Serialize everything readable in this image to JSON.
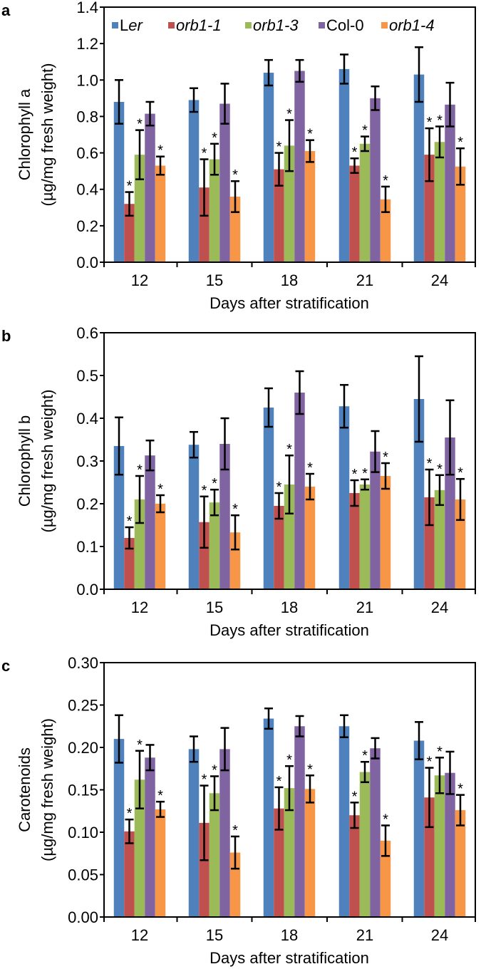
{
  "series_colors": {
    "Ler": "#4f81bd",
    "orb1-1": "#c0504d",
    "orb1-3": "#9bbb59",
    "Col-0": "#8064a2",
    "orb1-4": "#f79646"
  },
  "legend": {
    "placement": "top",
    "entries": [
      {
        "name": "Ler",
        "italic_part": "er"
      },
      {
        "name": "orb1-1",
        "italic_part": "orb1-1"
      },
      {
        "name": "orb1-3",
        "italic_part": "orb1-3"
      },
      {
        "name": "Col-0",
        "italic_part": ""
      },
      {
        "name": "orb1-4",
        "italic_part": "orb1-4"
      }
    ]
  },
  "chart_data": [
    {
      "panel_label": "a",
      "type": "bar",
      "ylabel": [
        "Chlorophyll a",
        "(µg/mg fresh weight)"
      ],
      "xlabel": "Days after stratification",
      "categories": [
        "12",
        "15",
        "18",
        "21",
        "24"
      ],
      "ylim": [
        0,
        1.4
      ],
      "yticks": [
        "0.0",
        "0.2",
        "0.4",
        "0.6",
        "0.8",
        "1.0",
        "1.2",
        "1.4"
      ],
      "grid": false,
      "legend": true,
      "series": [
        {
          "name": "Ler",
          "values": [
            0.88,
            0.89,
            1.04,
            1.06,
            1.03
          ],
          "errors": [
            0.12,
            0.065,
            0.07,
            0.08,
            0.15
          ],
          "significant": [
            false,
            false,
            false,
            false,
            false
          ]
        },
        {
          "name": "orb1-1",
          "values": [
            0.32,
            0.41,
            0.51,
            0.53,
            0.59
          ],
          "errors": [
            0.065,
            0.155,
            0.09,
            0.04,
            0.145
          ],
          "significant": [
            true,
            true,
            true,
            true,
            true
          ]
        },
        {
          "name": "orb1-3",
          "values": [
            0.59,
            0.565,
            0.64,
            0.65,
            0.66
          ],
          "errors": [
            0.135,
            0.085,
            0.14,
            0.04,
            0.085
          ],
          "significant": [
            true,
            true,
            true,
            true,
            true
          ]
        },
        {
          "name": "Col-0",
          "values": [
            0.815,
            0.87,
            1.05,
            0.9,
            0.865
          ],
          "errors": [
            0.065,
            0.11,
            0.06,
            0.065,
            0.12
          ],
          "significant": [
            false,
            false,
            false,
            false,
            false
          ]
        },
        {
          "name": "orb1-4",
          "values": [
            0.53,
            0.36,
            0.61,
            0.345,
            0.525
          ],
          "errors": [
            0.05,
            0.085,
            0.06,
            0.07,
            0.1
          ],
          "significant": [
            true,
            true,
            true,
            true,
            true
          ]
        }
      ]
    },
    {
      "panel_label": "b",
      "type": "bar",
      "ylabel": [
        "Chlorophyll b",
        "(µg/mg fresh weight)"
      ],
      "xlabel": "Days after stratification",
      "categories": [
        "12",
        "15",
        "18",
        "21",
        "24"
      ],
      "ylim": [
        0,
        0.6
      ],
      "yticks": [
        "0.0",
        "0.1",
        "0.2",
        "0.3",
        "0.4",
        "0.5",
        "0.6"
      ],
      "grid": false,
      "legend": false,
      "series": [
        {
          "name": "Ler",
          "values": [
            0.335,
            0.338,
            0.425,
            0.428,
            0.445
          ],
          "errors": [
            0.067,
            0.03,
            0.045,
            0.05,
            0.1
          ],
          "significant": [
            false,
            false,
            false,
            false,
            false
          ]
        },
        {
          "name": "orb1-1",
          "values": [
            0.12,
            0.157,
            0.195,
            0.225,
            0.215
          ],
          "errors": [
            0.025,
            0.06,
            0.03,
            0.03,
            0.065
          ],
          "significant": [
            true,
            true,
            true,
            true,
            true
          ]
        },
        {
          "name": "orb1-3",
          "values": [
            0.21,
            0.203,
            0.245,
            0.245,
            0.232
          ],
          "errors": [
            0.055,
            0.03,
            0.068,
            0.012,
            0.035
          ],
          "significant": [
            true,
            true,
            true,
            true,
            true
          ]
        },
        {
          "name": "Col-0",
          "values": [
            0.313,
            0.34,
            0.46,
            0.322,
            0.355
          ],
          "errors": [
            0.035,
            0.06,
            0.05,
            0.048,
            0.087
          ],
          "significant": [
            false,
            false,
            false,
            false,
            false
          ]
        },
        {
          "name": "orb1-4",
          "values": [
            0.2,
            0.133,
            0.24,
            0.265,
            0.21
          ],
          "errors": [
            0.02,
            0.04,
            0.03,
            0.03,
            0.048
          ],
          "significant": [
            true,
            true,
            true,
            true,
            true
          ]
        }
      ]
    },
    {
      "panel_label": "c",
      "type": "bar",
      "ylabel": [
        "Carotenoids",
        "(µg/mg fresh weight)"
      ],
      "xlabel": "Days after stratification",
      "categories": [
        "12",
        "15",
        "18",
        "21",
        "24"
      ],
      "ylim": [
        0,
        0.3
      ],
      "yticks": [
        "0.00",
        "0.05",
        "0.10",
        "0.15",
        "0.20",
        "0.25",
        "0.30"
      ],
      "grid": false,
      "legend": false,
      "series": [
        {
          "name": "Ler",
          "values": [
            0.21,
            0.198,
            0.234,
            0.225,
            0.208
          ],
          "errors": [
            0.028,
            0.015,
            0.012,
            0.013,
            0.022
          ],
          "significant": [
            false,
            false,
            false,
            false,
            false
          ]
        },
        {
          "name": "orb1-1",
          "values": [
            0.101,
            0.111,
            0.128,
            0.12,
            0.141
          ],
          "errors": [
            0.014,
            0.044,
            0.025,
            0.015,
            0.035
          ],
          "significant": [
            true,
            true,
            true,
            true,
            true
          ]
        },
        {
          "name": "orb1-3",
          "values": [
            0.162,
            0.146,
            0.152,
            0.171,
            0.167
          ],
          "errors": [
            0.034,
            0.02,
            0.026,
            0.012,
            0.021
          ],
          "significant": [
            true,
            true,
            true,
            true,
            true
          ]
        },
        {
          "name": "Col-0",
          "values": [
            0.188,
            0.198,
            0.225,
            0.199,
            0.17
          ],
          "errors": [
            0.015,
            0.025,
            0.012,
            0.012,
            0.025
          ],
          "significant": [
            false,
            false,
            false,
            false,
            false
          ]
        },
        {
          "name": "orb1-4",
          "values": [
            0.127,
            0.076,
            0.151,
            0.09,
            0.126
          ],
          "errors": [
            0.009,
            0.019,
            0.016,
            0.018,
            0.018
          ],
          "significant": [
            true,
            true,
            true,
            true,
            true
          ]
        }
      ]
    }
  ]
}
